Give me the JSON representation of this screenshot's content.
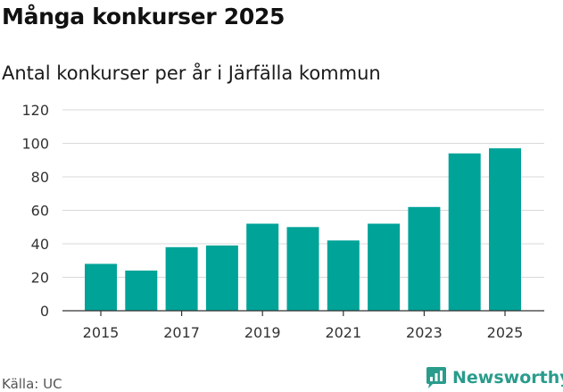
{
  "header": {
    "title": "Många konkurser 2025",
    "subtitle": "Antal konkurser per år i Järfälla kommun"
  },
  "footer": {
    "source": "Källa: UC",
    "brand": "Newsworthy",
    "brand_icon": "newsworthy-logo-icon"
  },
  "colors": {
    "bar": "#00a398",
    "grid": "#d9d9d9",
    "axis": "#333333",
    "brand": "#2a9c8c"
  },
  "chart_data": {
    "type": "bar",
    "title": "Många konkurser 2025",
    "subtitle": "Antal konkurser per år i Järfälla kommun",
    "xlabel": "",
    "ylabel": "",
    "categories": [
      "2015",
      "2016",
      "2017",
      "2018",
      "2019",
      "2020",
      "2021",
      "2022",
      "2023",
      "2024",
      "2025"
    ],
    "values": [
      28,
      24,
      38,
      39,
      52,
      50,
      42,
      52,
      62,
      94,
      97
    ],
    "x_tick_labels": [
      "2015",
      "2017",
      "2019",
      "2021",
      "2023",
      "2025"
    ],
    "y_ticks": [
      0,
      20,
      40,
      60,
      80,
      100,
      120
    ],
    "ylim": [
      0,
      120
    ],
    "grid": true,
    "legend": "none"
  }
}
